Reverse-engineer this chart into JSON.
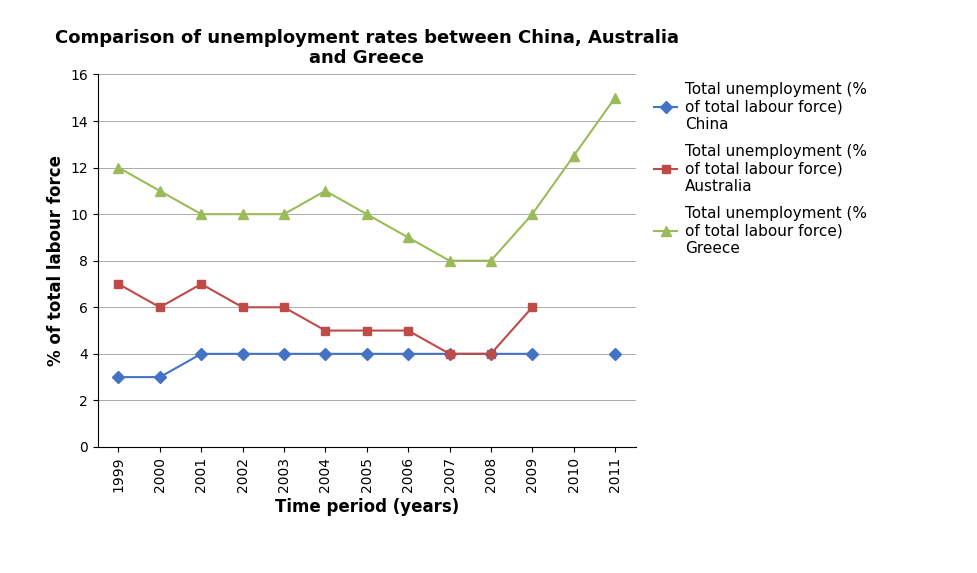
{
  "years": [
    1999,
    2000,
    2001,
    2002,
    2003,
    2004,
    2005,
    2006,
    2007,
    2008,
    2009,
    2010,
    2011
  ],
  "china": [
    3,
    3,
    4,
    4,
    4,
    4,
    4,
    4,
    4,
    4,
    4,
    null,
    4
  ],
  "australia": [
    7,
    6,
    7,
    6,
    6,
    5,
    5,
    5,
    4,
    4,
    6,
    null,
    null
  ],
  "greece": [
    12,
    11,
    10,
    10,
    10,
    11,
    10,
    9,
    8,
    8,
    10,
    12.5,
    15
  ],
  "china_color": "#4472C4",
  "australia_color": "#BE4B48",
  "greece_color": "#9BBB59",
  "title": "Comparison of unemployment rates between China, Australia\nand Greece",
  "xlabel": "Time period (years)",
  "ylabel": "% of total labour force",
  "legend_china": "Total unemployment (%\nof total labour force)\nChina",
  "legend_australia": "Total unemployment (%\nof total labour force)\nAustralia",
  "legend_greece": "Total unemployment (%\nof total labour force)\nGreece",
  "ylim": [
    0,
    16
  ],
  "yticks": [
    0,
    2,
    4,
    6,
    8,
    10,
    12,
    14,
    16
  ],
  "background_color": "#FFFFFF",
  "tick_fontsize": 10,
  "label_fontsize": 12,
  "title_fontsize": 13,
  "legend_fontsize": 11
}
